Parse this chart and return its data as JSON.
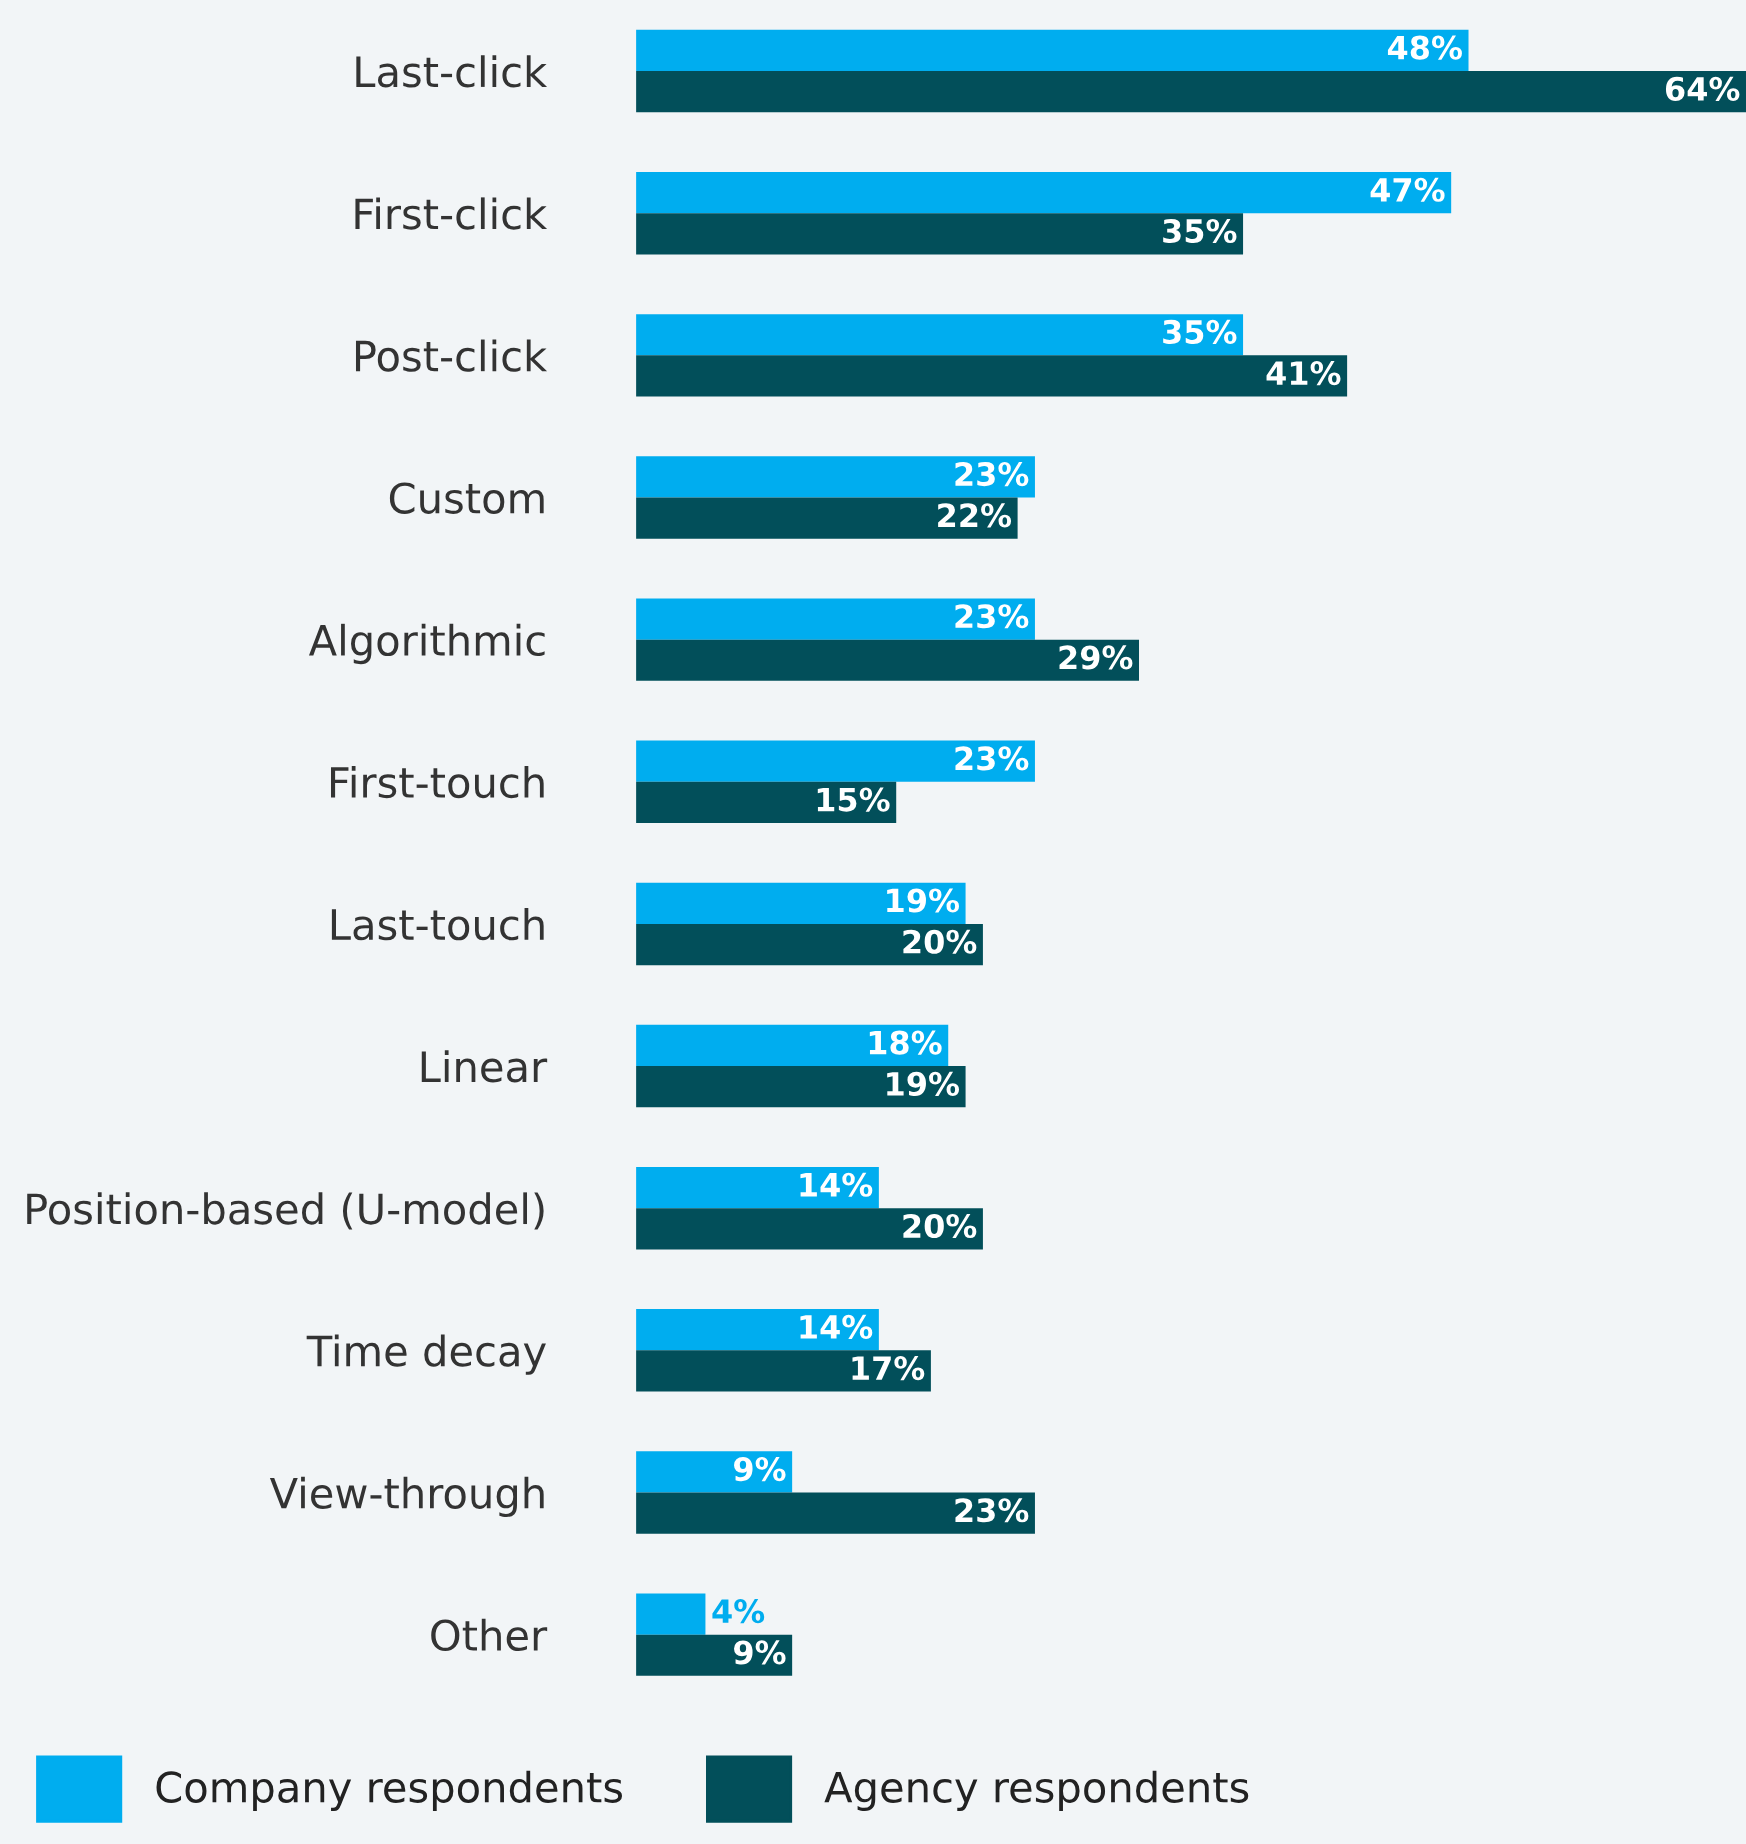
{
  "chart_data": {
    "type": "bar",
    "orientation": "horizontal",
    "categories": [
      "Last-click",
      "First-click",
      "Post-click",
      "Custom",
      "Algorithmic",
      "First-touch",
      "Last-touch",
      "Linear",
      "Position-based (U-model)",
      "Time decay",
      "View-through",
      "Other"
    ],
    "series": [
      {
        "name": "Company respondents",
        "color": "#00adef",
        "values": [
          48,
          47,
          35,
          23,
          23,
          23,
          19,
          18,
          14,
          14,
          9,
          4
        ],
        "value_labels": [
          "48%",
          "47%",
          "35%",
          "23%",
          "23%",
          "23%",
          "19%",
          "18%",
          "14%",
          "14%",
          "9%",
          "4%"
        ]
      },
      {
        "name": "Agency respondents",
        "color": "#024f5a",
        "values": [
          64,
          35,
          41,
          22,
          29,
          15,
          20,
          19,
          20,
          17,
          23,
          9
        ],
        "value_labels": [
          "64%",
          "35%",
          "41%",
          "22%",
          "29%",
          "15%",
          "20%",
          "19%",
          "20%",
          "17%",
          "23%",
          "9%"
        ]
      }
    ],
    "grid": false,
    "legend": "bottom"
  }
}
